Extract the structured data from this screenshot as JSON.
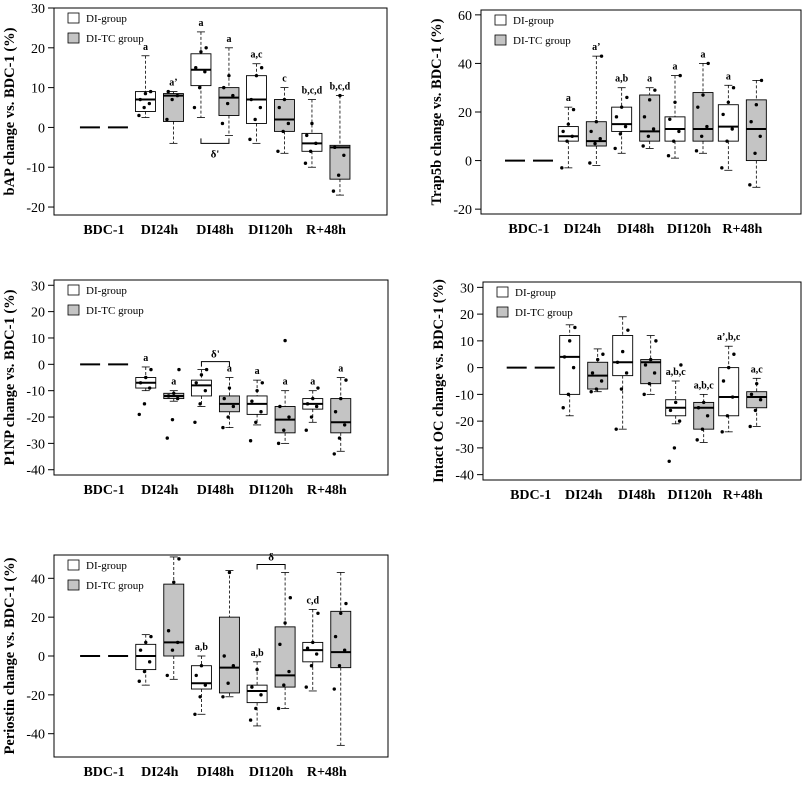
{
  "figure": {
    "legend": {
      "di_label": "DI-group",
      "ditc_label": "DI-TC group",
      "di_color": "#ffffff",
      "ditc_color": "#c4c4c4"
    }
  },
  "chart_data": [
    {
      "type": "box",
      "id": "bap",
      "ylabel": "bAP change vs. BDC-1 (%)",
      "ylim": [
        -22,
        30
      ],
      "yticks": [
        -20,
        -10,
        0,
        10,
        20,
        30
      ],
      "categories": [
        "BDC-1",
        "DI24h",
        "DI48h",
        "DI120h",
        "R+48h"
      ],
      "series": [
        {
          "name": "DI-group",
          "boxes": [
            {
              "min": 0,
              "q1": 0,
              "median": 0,
              "q3": 0,
              "max": 0
            },
            {
              "min": 2.5,
              "q1": 4,
              "median": 7,
              "q3": 9,
              "max": 18
            },
            {
              "min": 2.5,
              "q1": 10.5,
              "median": 14.5,
              "q3": 18.5,
              "max": 24
            },
            {
              "min": -4,
              "q1": 1,
              "median": 7,
              "q3": 13,
              "max": 16
            },
            {
              "min": -10,
              "q1": -6,
              "median": -4,
              "q3": -1.5,
              "max": 7
            }
          ],
          "points": [
            [],
            [
              3,
              5,
              6,
              7,
              8.5,
              9
            ],
            [
              5,
              10,
              14,
              15,
              19,
              20
            ],
            [
              -3,
              2,
              5,
              7,
              13,
              15
            ],
            [
              -9,
              -6,
              -4,
              -2,
              1
            ]
          ],
          "sig": [
            "",
            "a",
            "a",
            "a,c",
            "b,c,d"
          ]
        },
        {
          "name": "DI-TC group",
          "boxes": [
            {
              "min": 0,
              "q1": 0,
              "median": 0,
              "q3": 0,
              "max": 0
            },
            {
              "min": -4,
              "q1": 1.5,
              "median": 8,
              "q3": 8.5,
              "max": 9
            },
            {
              "min": -2,
              "q1": 3,
              "median": 7.5,
              "q3": 10,
              "max": 20
            },
            {
              "min": -6.5,
              "q1": -1,
              "median": 2,
              "q3": 7,
              "max": 10
            },
            {
              "min": -17,
              "q1": -13,
              "median": -5,
              "q3": -4.5,
              "max": 8
            }
          ],
          "points": [
            [],
            [
              2,
              7,
              8,
              9
            ],
            [
              1,
              6,
              8,
              10,
              13
            ],
            [
              -6,
              -1,
              1,
              5,
              7
            ],
            [
              -16,
              -12,
              -7,
              -5,
              8
            ]
          ],
          "sig": [
            "",
            "a’",
            "a",
            "c",
            "b,c,d"
          ]
        }
      ],
      "brackets": [
        {
          "category": 2,
          "label": "δ'",
          "position": "below"
        }
      ]
    },
    {
      "type": "box",
      "id": "trap5b",
      "ylabel": "Trap5b change vs. BDC-1 (%)",
      "ylim": [
        -22,
        62
      ],
      "yticks": [
        -20,
        0,
        20,
        40,
        60
      ],
      "categories": [
        "BDC-1",
        "DI24h",
        "DI48h",
        "DI120h",
        "R+48h"
      ],
      "series": [
        {
          "name": "DI-group",
          "boxes": [
            {
              "min": 0,
              "q1": 0,
              "median": 0,
              "q3": 0,
              "max": 0
            },
            {
              "min": -3,
              "q1": 8,
              "median": 10,
              "q3": 14,
              "max": 22
            },
            {
              "min": 3,
              "q1": 12,
              "median": 15,
              "q3": 22,
              "max": 30
            },
            {
              "min": 1,
              "q1": 8,
              "median": 13,
              "q3": 18,
              "max": 35
            },
            {
              "min": -4,
              "q1": 8,
              "median": 14,
              "q3": 23,
              "max": 31
            }
          ],
          "points": [
            [],
            [
              -3,
              8,
              10,
              12,
              15,
              21
            ],
            [
              5,
              11,
              14,
              18,
              22,
              26
            ],
            [
              2,
              8,
              12,
              17,
              24,
              35
            ],
            [
              -3,
              8,
              13,
              19,
              24,
              30
            ]
          ],
          "sig": [
            "",
            "a",
            "a,b",
            "a",
            "a"
          ]
        },
        {
          "name": "DI-TC group",
          "boxes": [
            {
              "min": 0,
              "q1": 0,
              "median": 0,
              "q3": 0,
              "max": 0
            },
            {
              "min": -2,
              "q1": 6,
              "median": 8,
              "q3": 16,
              "max": 43
            },
            {
              "min": 5,
              "q1": 8,
              "median": 12,
              "q3": 27,
              "max": 30
            },
            {
              "min": 3,
              "q1": 8,
              "median": 13,
              "q3": 28,
              "max": 40
            },
            {
              "min": -11,
              "q1": 0,
              "median": 13,
              "q3": 25,
              "max": 33
            }
          ],
          "points": [
            [],
            [
              -1,
              7,
              9,
              12,
              16,
              43
            ],
            [
              6,
              10,
              13,
              18,
              25,
              29
            ],
            [
              4,
              10,
              14,
              22,
              27,
              40
            ],
            [
              -10,
              3,
              10,
              16,
              23,
              33
            ]
          ],
          "sig": [
            "",
            "a’",
            "a",
            "a",
            ""
          ]
        }
      ],
      "brackets": []
    },
    {
      "type": "box",
      "id": "p1np",
      "ylabel": "P1NP change vs. BDC-1 (%)",
      "ylim": [
        -42,
        32
      ],
      "yticks": [
        -40,
        -30,
        -20,
        -10,
        0,
        10,
        20,
        30
      ],
      "categories": [
        "BDC-1",
        "DI24h",
        "DI48h",
        "DI120h",
        "R+48h"
      ],
      "series": [
        {
          "name": "DI-group",
          "boxes": [
            {
              "min": 0,
              "q1": 0,
              "median": 0,
              "q3": 0,
              "max": 0
            },
            {
              "min": -10,
              "q1": -9,
              "median": -7,
              "q3": -5,
              "max": -1
            },
            {
              "min": -16,
              "q1": -12,
              "median": -8,
              "q3": -6,
              "max": -2
            },
            {
              "min": -23,
              "q1": -19,
              "median": -15,
              "q3": -12,
              "max": -6
            },
            {
              "min": -22,
              "q1": -17,
              "median": -15,
              "q3": -13,
              "max": -10
            }
          ],
          "points": [
            [],
            [
              -19,
              -15,
              -9,
              -7,
              -5,
              -2
            ],
            [
              -22,
              -15,
              -10,
              -7,
              -4,
              -2
            ],
            [
              -29,
              -22,
              -18,
              -14,
              -10,
              -7
            ],
            [
              -25,
              -20,
              -16,
              -15,
              -13,
              -9
            ]
          ],
          "sig": [
            "",
            "a",
            "",
            "a",
            "a"
          ]
        },
        {
          "name": "DI-TC group",
          "boxes": [
            {
              "min": 0,
              "q1": 0,
              "median": 0,
              "q3": 0,
              "max": 0
            },
            {
              "min": -14,
              "q1": -13,
              "median": -12,
              "q3": -11,
              "max": -10
            },
            {
              "min": -24,
              "q1": -18,
              "median": -15,
              "q3": -12,
              "max": -5
            },
            {
              "min": -30,
              "q1": -26,
              "median": -21,
              "q3": -16,
              "max": -10
            },
            {
              "min": -33,
              "q1": -26,
              "median": -22,
              "q3": -13,
              "max": -5
            }
          ],
          "points": [
            [],
            [
              -28,
              -21,
              -13,
              -12,
              -11,
              -2
            ],
            [
              -24,
              -20,
              -16,
              -13,
              -9
            ],
            [
              -30,
              -25,
              -20,
              -16,
              9
            ],
            [
              -34,
              -28,
              -23,
              -18,
              -13,
              -6
            ]
          ],
          "sig": [
            "",
            "a",
            "a",
            "a",
            "a"
          ]
        }
      ],
      "brackets": [
        {
          "category": 2,
          "label": "δ'",
          "position": "above"
        }
      ]
    },
    {
      "type": "box",
      "id": "intactoc",
      "ylabel": "Intact OC change vs. BDC-1 (%)",
      "ylim": [
        -42,
        32
      ],
      "yticks": [
        -40,
        -30,
        -20,
        -10,
        0,
        10,
        20,
        30
      ],
      "categories": [
        "BDC-1",
        "DI24h",
        "DI48h",
        "DI120h",
        "R+48h"
      ],
      "series": [
        {
          "name": "DI-group",
          "boxes": [
            {
              "min": 0,
              "q1": 0,
              "median": 0,
              "q3": 0,
              "max": 0
            },
            {
              "min": -18,
              "q1": -10,
              "median": 4,
              "q3": 12,
              "max": 16
            },
            {
              "min": -23,
              "q1": -3,
              "median": 2,
              "q3": 12,
              "max": 19
            },
            {
              "min": -21,
              "q1": -18,
              "median": -15,
              "q3": -12,
              "max": -5
            },
            {
              "min": -24,
              "q1": -18,
              "median": -11,
              "q3": 0,
              "max": 8
            }
          ],
          "points": [
            [],
            [
              -15,
              -10,
              0,
              4,
              10,
              15
            ],
            [
              -23,
              -8,
              -2,
              2,
              6,
              14
            ],
            [
              -35,
              -30,
              -20,
              -16,
              -13,
              1
            ],
            [
              -24,
              -18,
              -11,
              -5,
              0,
              5
            ]
          ],
          "sig": [
            "",
            "",
            "",
            "a,b,c",
            "a’,b,c"
          ]
        },
        {
          "name": "DI-TC group",
          "boxes": [
            {
              "min": 0,
              "q1": 0,
              "median": 0,
              "q3": 0,
              "max": 0
            },
            {
              "min": -9,
              "q1": -8,
              "median": -3,
              "q3": 2,
              "max": 7
            },
            {
              "min": -10,
              "q1": -6,
              "median": 2,
              "q3": 3,
              "max": 12
            },
            {
              "min": -28,
              "q1": -23,
              "median": -15,
              "q3": -13,
              "max": -10
            },
            {
              "min": -22,
              "q1": -15,
              "median": -11,
              "q3": -9,
              "max": -4
            }
          ],
          "points": [
            [],
            [
              -9,
              -8,
              -5,
              -2,
              3,
              5
            ],
            [
              -10,
              -6,
              -2,
              1,
              3,
              10
            ],
            [
              -27,
              -23,
              -18,
              -15,
              -13
            ],
            [
              -22,
              -16,
              -12,
              -10,
              -6
            ]
          ],
          "sig": [
            "",
            "",
            "",
            "a,b,c",
            "a,c"
          ]
        }
      ],
      "brackets": []
    },
    {
      "type": "box",
      "id": "periostin",
      "ylabel": "Periostin change vs. BDC-1 (%)",
      "ylim": [
        -52,
        52
      ],
      "yticks": [
        -40,
        -20,
        0,
        20,
        40
      ],
      "categories": [
        "BDC-1",
        "DI24h",
        "DI48h",
        "DI120h",
        "R+48h"
      ],
      "series": [
        {
          "name": "DI-group",
          "boxes": [
            {
              "min": 0,
              "q1": 0,
              "median": 0,
              "q3": 0,
              "max": 0
            },
            {
              "min": -15,
              "q1": -7,
              "median": 0,
              "q3": 6,
              "max": 11
            },
            {
              "min": -30,
              "q1": -17,
              "median": -14,
              "q3": -5,
              "max": 0
            },
            {
              "min": -36,
              "q1": -24,
              "median": -18,
              "q3": -15,
              "max": -3
            },
            {
              "min": -18,
              "q1": -3,
              "median": 3,
              "q3": 7,
              "max": 24
            }
          ],
          "points": [
            [],
            [
              -13,
              -8,
              -3,
              3,
              7,
              10
            ],
            [
              -30,
              -21,
              -15,
              -10,
              -5
            ],
            [
              -33,
              -27,
              -20,
              -16,
              -7
            ],
            [
              -16,
              -5,
              1,
              4,
              7,
              22
            ]
          ],
          "sig": [
            "",
            "",
            "a,b",
            "a,b",
            "c,d"
          ]
        },
        {
          "name": "DI-TC group",
          "boxes": [
            {
              "min": 0,
              "q1": 0,
              "median": 0,
              "q3": 0,
              "max": 0
            },
            {
              "min": -12,
              "q1": 0,
              "median": 7,
              "q3": 37,
              "max": 51
            },
            {
              "min": -21,
              "q1": -19,
              "median": -6,
              "q3": 20,
              "max": 44
            },
            {
              "min": -27,
              "q1": -16,
              "median": -10,
              "q3": 15,
              "max": 43
            },
            {
              "min": -46,
              "q1": -6,
              "median": 2,
              "q3": 23,
              "max": 43
            }
          ],
          "points": [
            [],
            [
              -10,
              3,
              7,
              13,
              38,
              50
            ],
            [
              -21,
              -14,
              -5,
              0,
              43
            ],
            [
              -27,
              -15,
              -8,
              6,
              17,
              30
            ],
            [
              -17,
              -5,
              3,
              10,
              22,
              27
            ]
          ],
          "sig": [
            "",
            "",
            "",
            "",
            ""
          ]
        }
      ],
      "brackets": [
        {
          "category": 3,
          "label": "δ",
          "position": "above"
        }
      ]
    }
  ]
}
